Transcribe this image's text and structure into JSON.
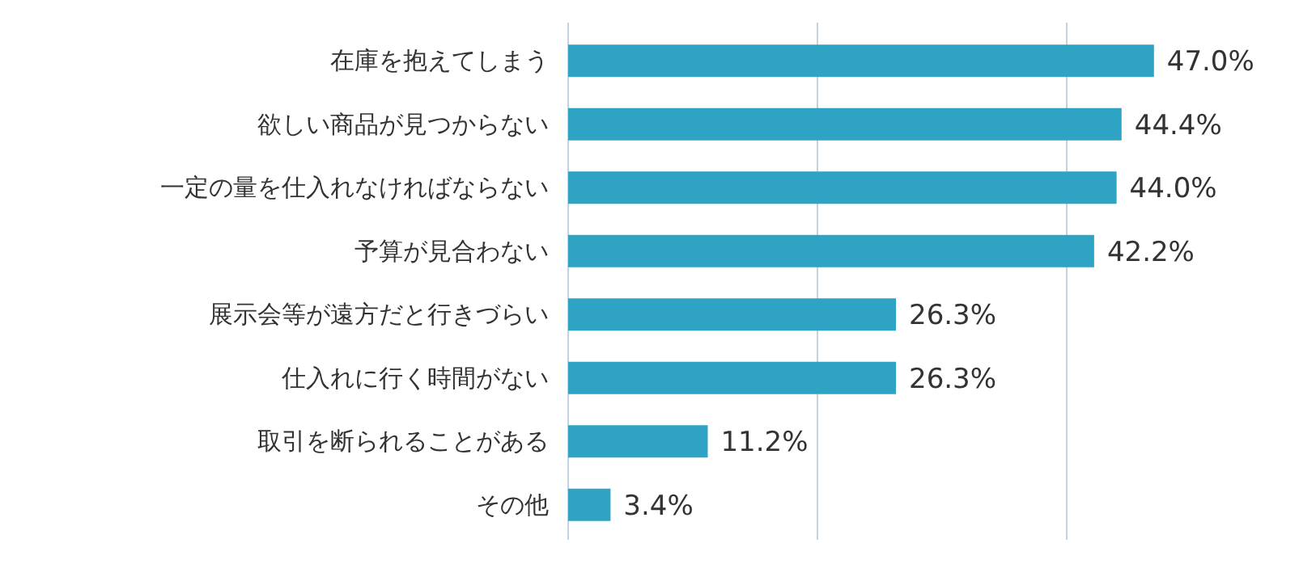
{
  "chart_data": {
    "type": "bar",
    "orientation": "horizontal",
    "categories": [
      "在庫を抱えてしまう",
      "欲しい商品が見つからない",
      "一定の量を仕入れなければならない",
      "予算が見合わない",
      "展示会等が遠方だと行きづらい",
      "仕入れに行く時間がない",
      "取引を断られることがある",
      "その他"
    ],
    "values": [
      47.0,
      44.4,
      44.0,
      42.2,
      26.3,
      26.3,
      11.2,
      3.4
    ],
    "value_labels": [
      "47.0%",
      "44.4%",
      "44.0%",
      "42.2%",
      "26.3%",
      "26.3%",
      "11.2%",
      "3.4%"
    ],
    "color": "#2fa3c3",
    "ref_lines": [
      {
        "axis": "x",
        "value": 20,
        "color": "#c3d2df"
      },
      {
        "axis": "x",
        "value": 40,
        "color": "#c3d2df"
      }
    ],
    "tick_labels": "y"
  }
}
